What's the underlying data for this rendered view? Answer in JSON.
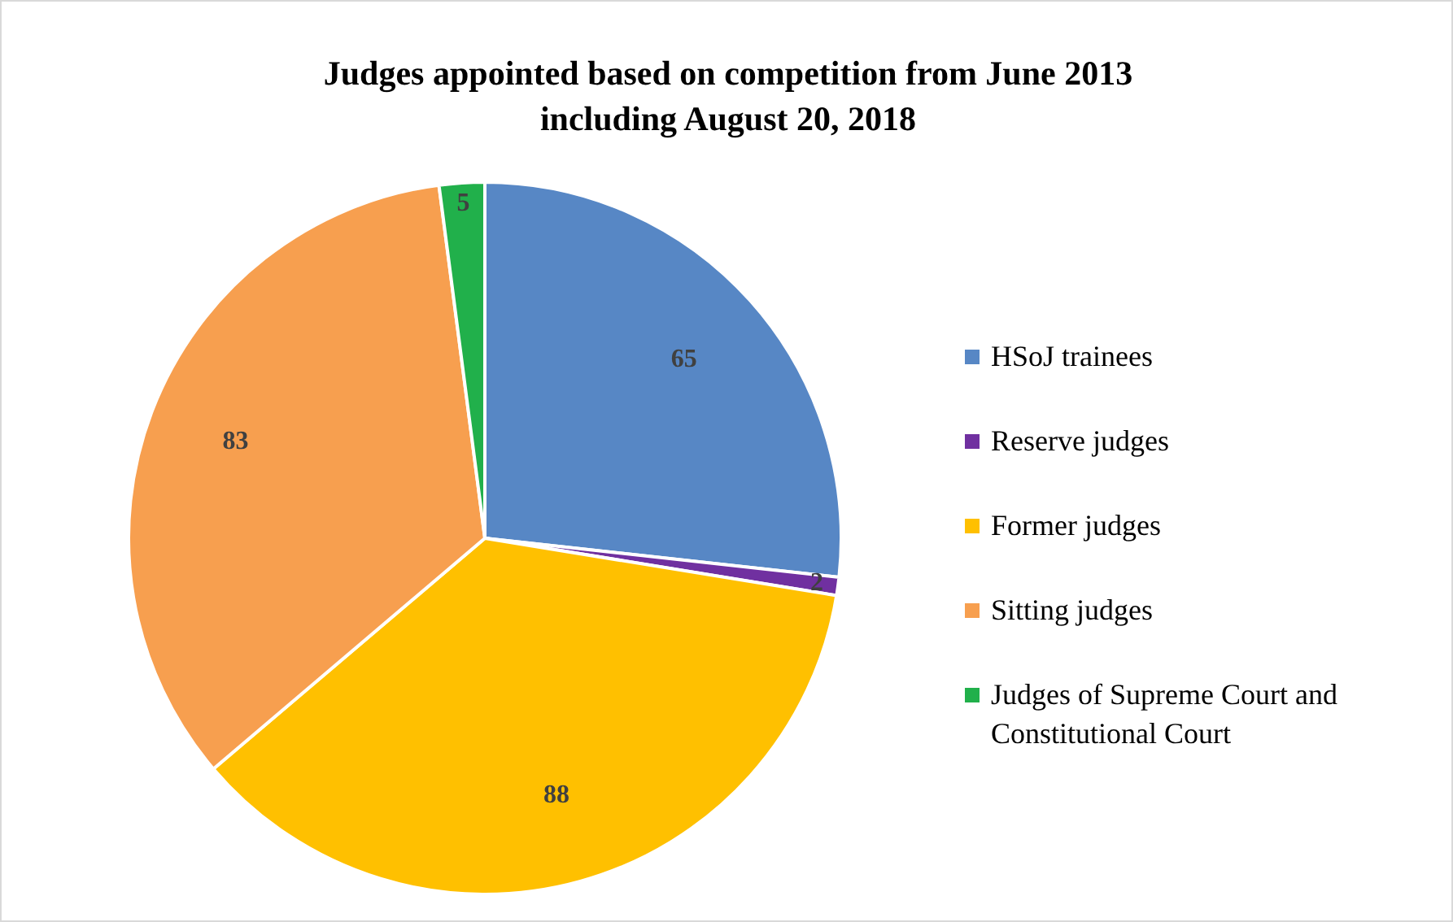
{
  "chart_data": {
    "type": "pie",
    "title": "Judges appointed based on competition from June 2013\nincluding August 20, 2018",
    "categories": [
      "HSoJ trainees",
      "Reserve judges",
      "Former judges",
      "Sitting judges",
      "Judges of Supreme Court and Constitutional Court"
    ],
    "values": [
      65,
      2,
      88,
      83,
      5
    ],
    "colors": [
      "#5787c5",
      "#7030a0",
      "#ffc000",
      "#f79f4f",
      "#21b04b"
    ],
    "data_labels": true,
    "legend": "right"
  }
}
